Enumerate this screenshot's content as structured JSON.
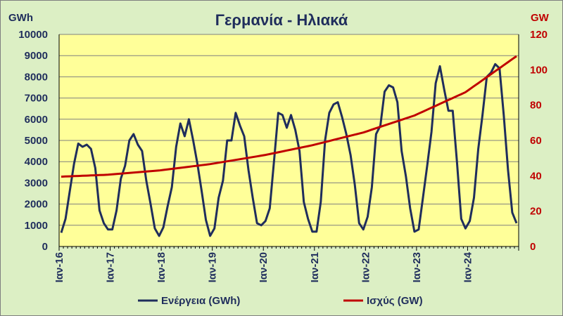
{
  "chart_data": {
    "type": "line",
    "title": "Γερμανία - Ηλιακά",
    "ylabel_left": "GWh",
    "ylabel_right": "GW",
    "ylim_left": [
      0,
      10000
    ],
    "ylim_right": [
      0,
      120
    ],
    "yticks_left": [
      "0",
      "1000",
      "2000",
      "3000",
      "4000",
      "5000",
      "6000",
      "7000",
      "8000",
      "9000",
      "10000"
    ],
    "yticks_right": [
      "0",
      "20",
      "40",
      "60",
      "80",
      "100",
      "120"
    ],
    "xticks": [
      "Ιαν-16",
      "Ιαν-17",
      "Ιαν-18",
      "Ιαν-19",
      "Ιαν-20",
      "Ιαν-21",
      "Ιαν-22",
      "Ιαν-23",
      "Ιαν-24"
    ],
    "grid": true,
    "legend_position": "bottom",
    "colors": {
      "plot_background": "#ffff99",
      "chart_background": "#dcefc4",
      "energy": "#1f2d5c",
      "power": "#c00000",
      "grid": "#808080"
    },
    "series": [
      {
        "name": "Ενέργεια (GWh)",
        "axis": "left",
        "values": [
          650,
          1300,
          2600,
          3900,
          4850,
          4700,
          4800,
          4600,
          3700,
          1700,
          1100,
          800,
          800,
          1700,
          3200,
          3800,
          5000,
          5300,
          4800,
          4500,
          3100,
          2000,
          850,
          500,
          900,
          1900,
          2800,
          4700,
          5800,
          5200,
          6000,
          5000,
          3900,
          2600,
          1250,
          500,
          850,
          2300,
          3100,
          5000,
          5000,
          6300,
          5700,
          5200,
          3600,
          2300,
          1100,
          1000,
          1200,
          1800,
          4000,
          6300,
          6200,
          5600,
          6200,
          5500,
          4500,
          2100,
          1300,
          700,
          700,
          2100,
          5000,
          6300,
          6700,
          6800,
          6100,
          5300,
          4300,
          2900,
          1100,
          800,
          1400,
          2800,
          5300,
          5700,
          7300,
          7600,
          7500,
          6800,
          4500,
          3300,
          1800,
          700,
          800,
          2300,
          3800,
          5400,
          7700,
          8500,
          7400,
          6400,
          6400,
          4000,
          1300,
          850,
          1200,
          2300,
          4600,
          6200,
          8000,
          8200,
          8600,
          8400,
          6200,
          3600,
          1600,
          1100
        ]
      },
      {
        "name": "Ισχύς (GW)",
        "axis": "right",
        "values": [
          39.5,
          39.6,
          39.7,
          39.8,
          39.9,
          40.0,
          40.1,
          40.2,
          40.3,
          40.4,
          40.5,
          40.6,
          40.8,
          41.0,
          41.2,
          41.4,
          41.6,
          41.8,
          42.0,
          42.2,
          42.4,
          42.6,
          42.8,
          43.0,
          43.3,
          43.6,
          43.9,
          44.2,
          44.5,
          44.8,
          45.1,
          45.4,
          45.7,
          46.0,
          46.3,
          46.6,
          47.0,
          47.4,
          47.8,
          48.2,
          48.6,
          49.0,
          49.4,
          49.8,
          50.2,
          50.6,
          51.0,
          51.4,
          51.8,
          52.3,
          52.8,
          53.3,
          53.8,
          54.3,
          54.8,
          55.3,
          55.8,
          56.3,
          56.8,
          57.3,
          57.9,
          58.5,
          59.1,
          59.7,
          60.3,
          60.9,
          61.5,
          62.1,
          62.7,
          63.3,
          63.9,
          64.5,
          65.3,
          66.1,
          66.9,
          67.7,
          68.5,
          69.3,
          70.1,
          70.9,
          71.7,
          72.5,
          73.3,
          74.1,
          75.2,
          76.3,
          77.4,
          78.5,
          79.6,
          80.7,
          81.8,
          82.9,
          84.0,
          85.1,
          86.2,
          87.3,
          89.0,
          90.7,
          92.4,
          94.1,
          95.8,
          97.5,
          99.2,
          100.9,
          102.6,
          104.3,
          106.0,
          107.7
        ]
      }
    ]
  }
}
